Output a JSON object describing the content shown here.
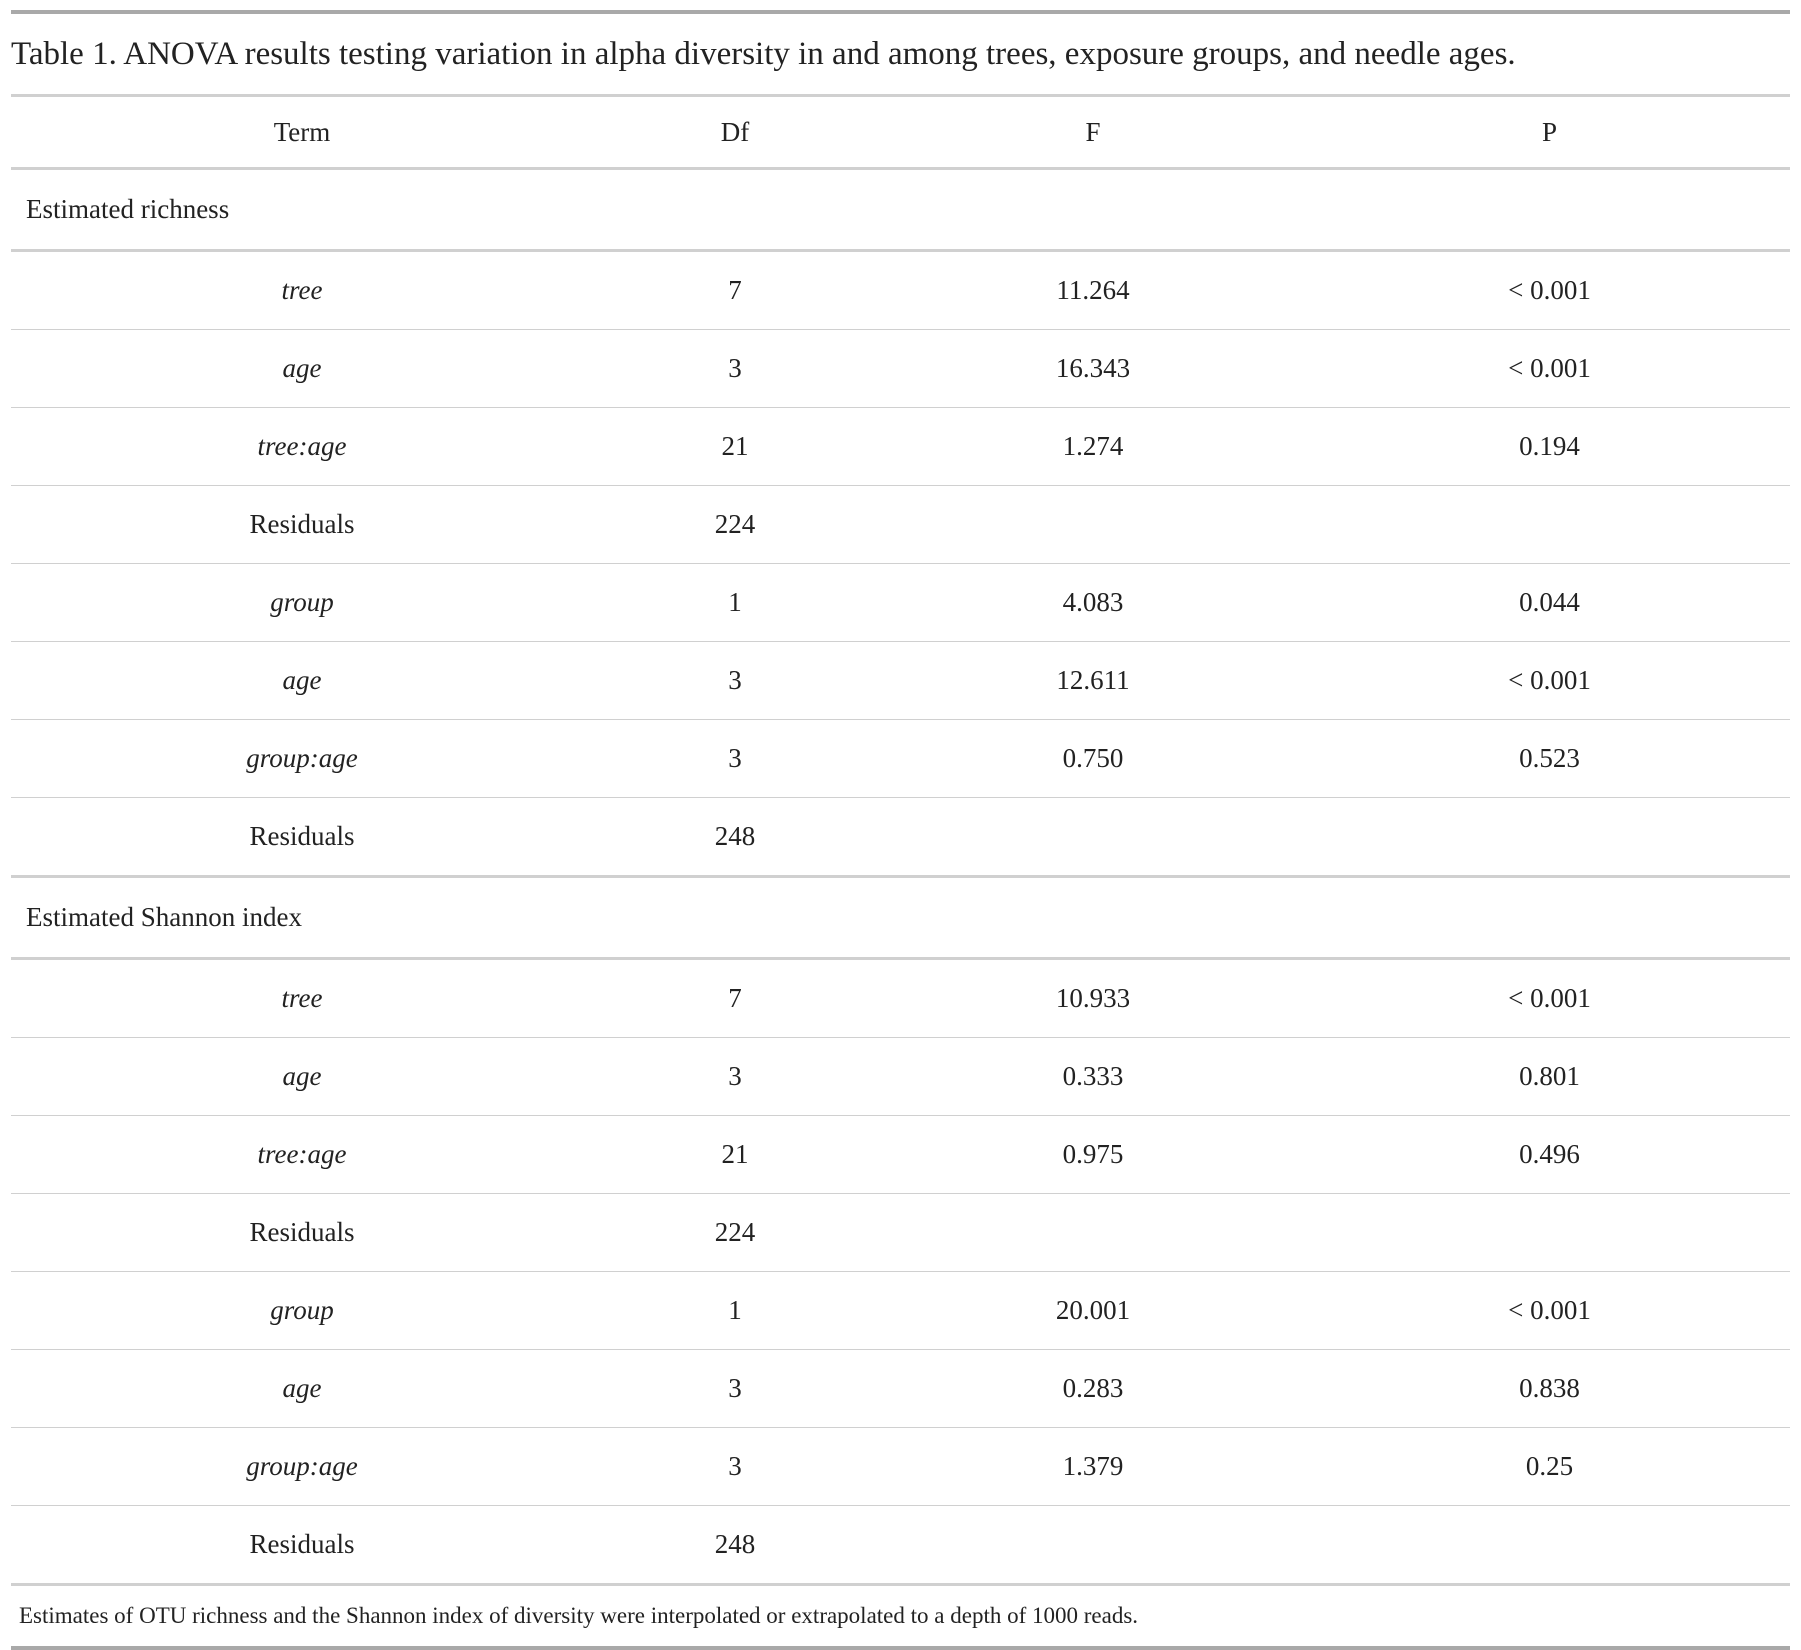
{
  "title": "Table 1. ANOVA results testing variation in alpha diversity in and among trees, exposure groups, and needle ages.",
  "table": {
    "header": [
      "Term",
      "Df",
      "F",
      "P"
    ],
    "sections": [
      {
        "label": "Estimated richness",
        "rows": [
          [
            "tree",
            "7",
            "11.264",
            "< 0.001"
          ],
          [
            "age",
            "3",
            "16.343",
            "< 0.001"
          ],
          [
            "tree:age",
            "21",
            "1.274",
            "0.194"
          ],
          [
            "Residuals",
            "224"
          ],
          [
            "group",
            "1",
            "4.083",
            "0.044"
          ],
          [
            "age",
            "3",
            "12.611",
            "< 0.001"
          ],
          [
            "group:age",
            "3",
            "0.750",
            "0.523"
          ],
          [
            "Residuals",
            "248"
          ]
        ]
      },
      {
        "label": "Estimated Shannon index",
        "rows": [
          [
            "tree",
            "7",
            "10.933",
            "< 0.001"
          ],
          [
            "age",
            "3",
            "0.333",
            "0.801"
          ],
          [
            "tree:age",
            "21",
            "0.975",
            "0.496"
          ],
          [
            "Residuals",
            "224"
          ],
          [
            "group",
            "1",
            "20.001",
            "< 0.001"
          ],
          [
            "age",
            "3",
            "0.283",
            "0.838"
          ],
          [
            "group:age",
            "3",
            "1.379",
            "0.25"
          ],
          [
            "Residuals",
            "248"
          ]
        ]
      }
    ]
  },
  "footnote": "Estimates of OTU richness and the Shannon index of diversity were interpolated or extrapolated to a depth of 1000 reads."
}
